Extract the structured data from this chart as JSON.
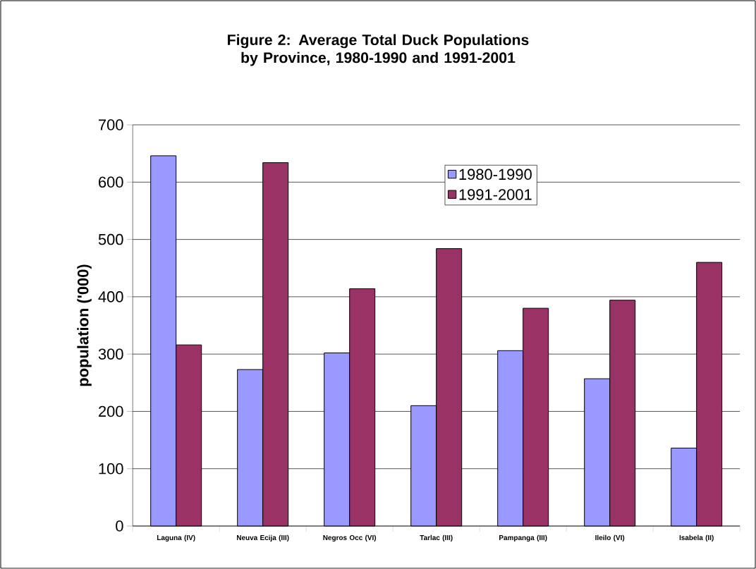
{
  "chart_data": {
    "type": "bar",
    "title": "Figure 2: Average Total Duck Populations by Province, 1980-1990 and 1991-2001",
    "ylabel": "population ('000)",
    "categories": [
      "Laguna (IV)",
      "Neuva Ecija (III)",
      "Negros Occ (VI)",
      "Tarlac (III)",
      "Pampanga (III)",
      "Ileilo (VI)",
      "Isabela (II)"
    ],
    "series": [
      {
        "name": "1980-1990",
        "color": "#9999ff",
        "values": [
          646,
          273,
          302,
          210,
          306,
          257,
          136
        ]
      },
      {
        "name": "1991-2001",
        "color": "#993366",
        "values": [
          316,
          634,
          414,
          484,
          380,
          394,
          460
        ]
      }
    ],
    "ylim": [
      0,
      700
    ],
    "yticks": [
      0,
      100,
      200,
      300,
      400,
      500,
      600,
      700
    ],
    "grid": "y",
    "legend": "top"
  }
}
